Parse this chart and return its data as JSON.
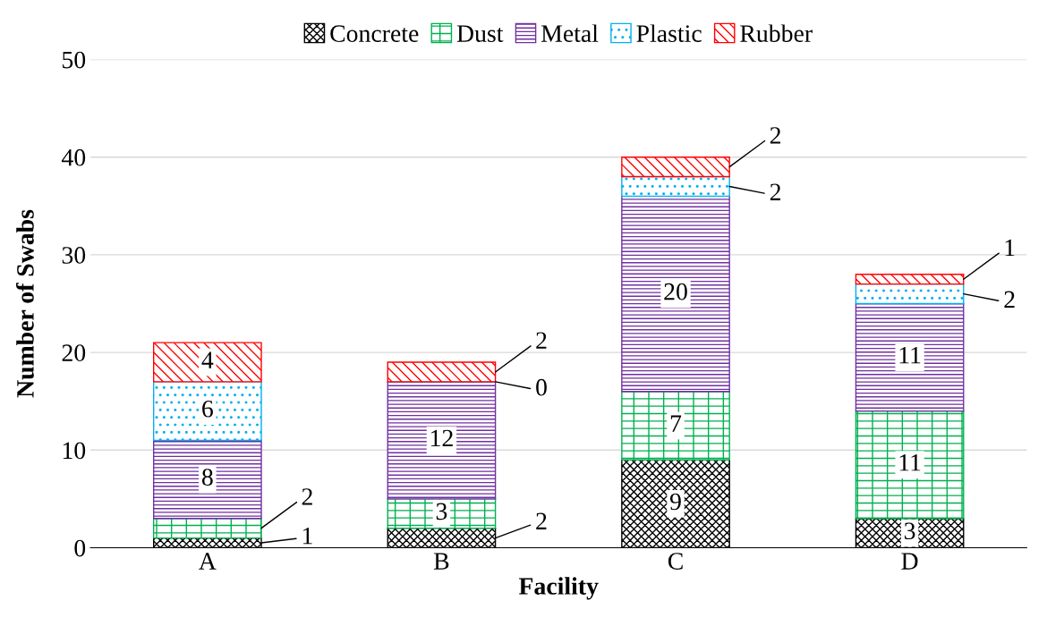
{
  "chart_data": {
    "type": "bar",
    "stacked": true,
    "xlabel": "Facility",
    "ylabel": "Number of Swabs",
    "categories": [
      "A",
      "B",
      "C",
      "D"
    ],
    "series": [
      {
        "name": "Concrete",
        "color": "#000000",
        "values": [
          1,
          2,
          9,
          3
        ]
      },
      {
        "name": "Dust",
        "color": "#00b050",
        "values": [
          2,
          3,
          7,
          11
        ]
      },
      {
        "name": "Metal",
        "color": "#7030a0",
        "values": [
          8,
          12,
          20,
          11
        ]
      },
      {
        "name": "Plastic",
        "color": "#00b0f0",
        "values": [
          6,
          0,
          2,
          2
        ]
      },
      {
        "name": "Rubber",
        "color": "#ff0000",
        "values": [
          4,
          2,
          2,
          1
        ]
      }
    ],
    "ylim": [
      0,
      50
    ],
    "yticks": [
      0,
      10,
      20,
      30,
      40,
      50
    ],
    "grid": "y",
    "legend": "top",
    "data_labels": true
  }
}
